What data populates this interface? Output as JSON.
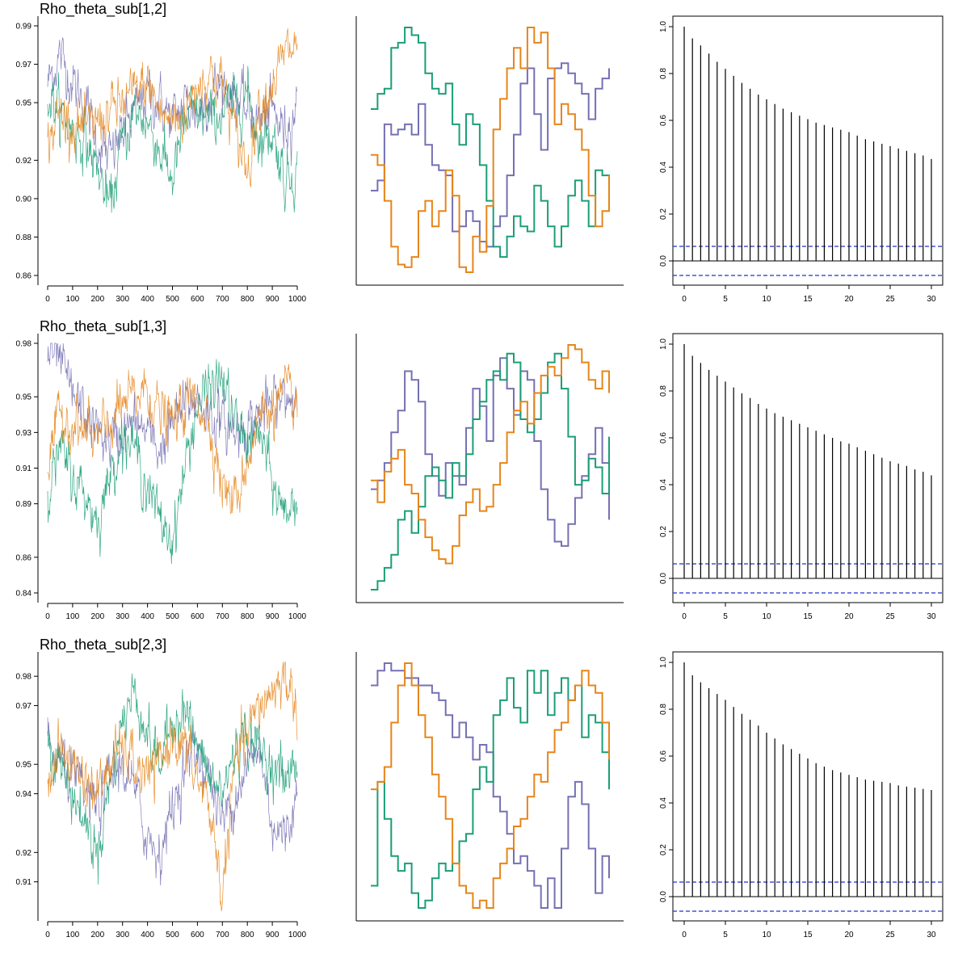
{
  "figure": {
    "colors": {
      "chain1": "#7570B3",
      "chain2": "#1B9E77",
      "chain3": "#E6851A",
      "acf": "#000000",
      "ci": "#2233CC",
      "axis": "#000000"
    },
    "ci": 0.062
  },
  "chart_data": [
    {
      "type": "line",
      "panel": "trace",
      "title": "Rho_theta_sub[1,2]",
      "xlim": [
        0,
        1000
      ],
      "xticks": [
        0,
        100,
        200,
        300,
        400,
        500,
        600,
        700,
        800,
        900,
        1000
      ],
      "ylim": [
        0.86,
        0.99
      ],
      "yticks": [
        "0.86",
        "0.88",
        "0.90",
        "0.92",
        "0.95",
        "0.97",
        "0.99"
      ],
      "series": [
        {
          "x": [
            0,
            50,
            100,
            150,
            200,
            250,
            300,
            350,
            400,
            450,
            500,
            550,
            600,
            650,
            700,
            750,
            800,
            850,
            900,
            950,
            1000
          ],
          "values": [
            0.96,
            0.975,
            0.96,
            0.95,
            0.93,
            0.92,
            0.935,
            0.945,
            0.955,
            0.95,
            0.94,
            0.95,
            0.945,
            0.955,
            0.96,
            0.955,
            0.945,
            0.94,
            0.945,
            0.935,
            0.95
          ]
        },
        {
          "x": [
            0,
            50,
            100,
            150,
            200,
            250,
            300,
            350,
            400,
            450,
            500,
            550,
            600,
            650,
            700,
            750,
            800,
            850,
            900,
            950,
            1000
          ],
          "values": [
            0.955,
            0.945,
            0.935,
            0.93,
            0.915,
            0.895,
            0.93,
            0.945,
            0.94,
            0.925,
            0.91,
            0.94,
            0.945,
            0.94,
            0.945,
            0.95,
            0.955,
            0.93,
            0.935,
            0.91,
            0.915
          ]
        },
        {
          "x": [
            0,
            50,
            100,
            150,
            200,
            250,
            300,
            350,
            400,
            450,
            500,
            550,
            600,
            650,
            700,
            750,
            800,
            850,
            900,
            950,
            1000
          ],
          "values": [
            0.93,
            0.945,
            0.94,
            0.935,
            0.94,
            0.945,
            0.95,
            0.955,
            0.96,
            0.945,
            0.94,
            0.945,
            0.96,
            0.965,
            0.96,
            0.935,
            0.915,
            0.95,
            0.96,
            0.975,
            0.98
          ]
        }
      ]
    },
    {
      "type": "line",
      "panel": "zoom",
      "series": [
        {
          "values": [
            0.914,
            0.918,
            0.94,
            0.936,
            0.938,
            0.94,
            0.936,
            0.948,
            0.932,
            0.924,
            0.922,
            0.92,
            0.898,
            0.9,
            0.906,
            0.902,
            0.894,
            0.892,
            0.9,
            0.904,
            0.92,
            0.936,
            0.956,
            0.962,
            0.944,
            0.93,
            0.958,
            0.962,
            0.964,
            0.96,
            0.956,
            0.952,
            0.942,
            0.954,
            0.958,
            0.962
          ]
        },
        {
          "values": [
            0.946,
            0.952,
            0.954,
            0.97,
            0.972,
            0.978,
            0.975,
            0.972,
            0.96,
            0.954,
            0.952,
            0.956,
            0.94,
            0.932,
            0.944,
            0.94,
            0.924,
            0.91,
            0.892,
            0.888,
            0.896,
            0.904,
            0.9,
            0.898,
            0.916,
            0.91,
            0.9,
            0.892,
            0.9,
            0.912,
            0.918,
            0.91,
            0.9,
            0.922,
            0.92,
            0.91
          ]
        },
        {
          "values": [
            0.928,
            0.924,
            0.91,
            0.892,
            0.885,
            0.884,
            0.888,
            0.906,
            0.91,
            0.9,
            0.906,
            0.922,
            0.912,
            0.884,
            0.882,
            0.896,
            0.89,
            0.908,
            0.938,
            0.95,
            0.962,
            0.97,
            0.962,
            0.978,
            0.972,
            0.976,
            0.962,
            0.94,
            0.948,
            0.944,
            0.938,
            0.93,
            0.912,
            0.9,
            0.906,
            0.92
          ]
        }
      ]
    },
    {
      "type": "bar",
      "panel": "acf",
      "xlim": [
        0,
        30
      ],
      "xticks": [
        0,
        5,
        10,
        15,
        20,
        25,
        30
      ],
      "ylim": [
        -0.1,
        1.0
      ],
      "yticks": [
        "0.0",
        "0.2",
        "0.4",
        "0.6",
        "0.8",
        "1.0"
      ],
      "values": [
        1.0,
        0.95,
        0.92,
        0.885,
        0.85,
        0.82,
        0.79,
        0.76,
        0.735,
        0.71,
        0.69,
        0.67,
        0.65,
        0.635,
        0.62,
        0.605,
        0.59,
        0.58,
        0.57,
        0.56,
        0.55,
        0.535,
        0.52,
        0.51,
        0.5,
        0.49,
        0.48,
        0.47,
        0.46,
        0.45,
        0.435
      ]
    },
    {
      "type": "line",
      "panel": "trace",
      "title": "Rho_theta_sub[1,3]",
      "xlim": [
        0,
        1000
      ],
      "xticks": [
        0,
        100,
        200,
        300,
        400,
        500,
        600,
        700,
        800,
        900,
        1000
      ],
      "ylim": [
        0.84,
        0.98
      ],
      "yticks": [
        "0.84",
        "0.86",
        "0.89",
        "0.91",
        "0.93",
        "0.95",
        "0.98"
      ],
      "series": [
        {
          "x": [
            0,
            50,
            100,
            150,
            200,
            250,
            300,
            350,
            400,
            450,
            500,
            550,
            600,
            650,
            700,
            750,
            800,
            850,
            900,
            950,
            1000
          ],
          "values": [
            0.975,
            0.97,
            0.95,
            0.94,
            0.93,
            0.925,
            0.93,
            0.935,
            0.93,
            0.92,
            0.935,
            0.945,
            0.95,
            0.94,
            0.935,
            0.93,
            0.935,
            0.94,
            0.945,
            0.95,
            0.95
          ]
        },
        {
          "x": [
            0,
            50,
            100,
            150,
            200,
            250,
            300,
            350,
            400,
            450,
            500,
            550,
            600,
            650,
            700,
            750,
            800,
            850,
            900,
            950,
            1000
          ],
          "values": [
            0.9,
            0.92,
            0.905,
            0.895,
            0.88,
            0.905,
            0.93,
            0.92,
            0.9,
            0.88,
            0.87,
            0.91,
            0.945,
            0.955,
            0.96,
            0.935,
            0.925,
            0.93,
            0.9,
            0.885,
            0.895
          ]
        },
        {
          "x": [
            0,
            50,
            100,
            150,
            200,
            250,
            300,
            350,
            400,
            450,
            500,
            550,
            600,
            650,
            700,
            750,
            800,
            850,
            900,
            950,
            1000
          ],
          "values": [
            0.91,
            0.94,
            0.935,
            0.93,
            0.925,
            0.935,
            0.945,
            0.95,
            0.955,
            0.94,
            0.935,
            0.945,
            0.95,
            0.935,
            0.9,
            0.89,
            0.915,
            0.94,
            0.945,
            0.95,
            0.945
          ]
        }
      ]
    },
    {
      "type": "line",
      "panel": "zoom",
      "series": [
        {
          "values": [
            0.908,
            0.912,
            0.92,
            0.934,
            0.944,
            0.962,
            0.958,
            0.948,
            0.924,
            0.914,
            0.905,
            0.92,
            0.914,
            0.91,
            0.936,
            0.954,
            0.946,
            0.93,
            0.96,
            0.968,
            0.954,
            0.942,
            0.962,
            0.958,
            0.93,
            0.908,
            0.894,
            0.884,
            0.882,
            0.892,
            0.904,
            0.914,
            0.924,
            0.936,
            0.92,
            0.894
          ]
        },
        {
          "values": [
            0.862,
            0.866,
            0.872,
            0.878,
            0.894,
            0.898,
            0.888,
            0.9,
            0.914,
            0.918,
            0.912,
            0.904,
            0.92,
            0.914,
            0.924,
            0.94,
            0.948,
            0.958,
            0.962,
            0.958,
            0.97,
            0.966,
            0.94,
            0.934,
            0.94,
            0.952,
            0.966,
            0.97,
            0.954,
            0.932,
            0.91,
            0.912,
            0.922,
            0.918,
            0.906,
            0.932
          ]
        },
        {
          "values": [
            0.912,
            0.902,
            0.916,
            0.922,
            0.926,
            0.91,
            0.906,
            0.894,
            0.886,
            0.88,
            0.876,
            0.874,
            0.882,
            0.896,
            0.902,
            0.908,
            0.898,
            0.9,
            0.91,
            0.92,
            0.934,
            0.944,
            0.948,
            0.938,
            0.952,
            0.96,
            0.964,
            0.96,
            0.968,
            0.974,
            0.972,
            0.966,
            0.958,
            0.954,
            0.962,
            0.952
          ]
        }
      ]
    },
    {
      "type": "bar",
      "panel": "acf",
      "xlim": [
        0,
        30
      ],
      "xticks": [
        0,
        5,
        10,
        15,
        20,
        25,
        30
      ],
      "ylim": [
        -0.1,
        1.0
      ],
      "yticks": [
        "0.0",
        "0.2",
        "0.4",
        "0.6",
        "0.8",
        "1.0"
      ],
      "values": [
        1.0,
        0.95,
        0.92,
        0.89,
        0.865,
        0.84,
        0.815,
        0.79,
        0.77,
        0.745,
        0.725,
        0.705,
        0.69,
        0.675,
        0.66,
        0.645,
        0.63,
        0.615,
        0.6,
        0.585,
        0.575,
        0.56,
        0.545,
        0.53,
        0.515,
        0.5,
        0.49,
        0.48,
        0.465,
        0.455,
        0.44
      ]
    },
    {
      "type": "line",
      "panel": "trace",
      "title": "Rho_theta_sub[2,3]",
      "xlim": [
        0,
        1000
      ],
      "xticks": [
        0,
        100,
        200,
        300,
        400,
        500,
        600,
        700,
        800,
        900,
        1000
      ],
      "ylim": [
        0.9,
        0.985
      ],
      "yticks": [
        "0.91",
        "0.92",
        "0.94",
        "0.95",
        "0.97",
        "0.98"
      ],
      "series": [
        {
          "x": [
            0,
            50,
            100,
            150,
            200,
            250,
            300,
            350,
            400,
            450,
            500,
            550,
            600,
            650,
            700,
            750,
            800,
            850,
            900,
            950,
            1000
          ],
          "values": [
            0.955,
            0.95,
            0.945,
            0.94,
            0.935,
            0.945,
            0.95,
            0.94,
            0.925,
            0.92,
            0.935,
            0.95,
            0.955,
            0.945,
            0.93,
            0.94,
            0.95,
            0.955,
            0.93,
            0.925,
            0.94
          ]
        },
        {
          "x": [
            0,
            50,
            100,
            150,
            200,
            250,
            300,
            350,
            400,
            450,
            500,
            550,
            600,
            650,
            700,
            750,
            800,
            850,
            900,
            950,
            1000
          ],
          "values": [
            0.96,
            0.95,
            0.94,
            0.93,
            0.92,
            0.945,
            0.965,
            0.975,
            0.96,
            0.95,
            0.965,
            0.97,
            0.955,
            0.945,
            0.94,
            0.955,
            0.96,
            0.955,
            0.95,
            0.945,
            0.95
          ]
        },
        {
          "x": [
            0,
            50,
            100,
            150,
            200,
            250,
            300,
            350,
            400,
            450,
            500,
            550,
            600,
            650,
            700,
            750,
            800,
            850,
            900,
            950,
            1000
          ],
          "values": [
            0.945,
            0.955,
            0.95,
            0.945,
            0.94,
            0.95,
            0.955,
            0.95,
            0.945,
            0.95,
            0.96,
            0.955,
            0.945,
            0.935,
            0.905,
            0.95,
            0.96,
            0.97,
            0.975,
            0.98,
            0.97
          ]
        }
      ]
    },
    {
      "type": "line",
      "panel": "zoom",
      "series": [
        {
          "values": [
            0.966,
            0.97,
            0.972,
            0.97,
            0.97,
            0.968,
            0.968,
            0.966,
            0.966,
            0.964,
            0.962,
            0.958,
            0.952,
            0.956,
            0.952,
            0.946,
            0.95,
            0.948,
            0.936,
            0.932,
            0.926,
            0.918,
            0.92,
            0.916,
            0.912,
            0.906,
            0.914,
            0.906,
            0.922,
            0.936,
            0.94,
            0.934,
            0.922,
            0.91,
            0.92,
            0.914
          ]
        },
        {
          "values": [
            0.912,
            0.94,
            0.93,
            0.92,
            0.916,
            0.918,
            0.91,
            0.906,
            0.908,
            0.914,
            0.918,
            0.916,
            0.918,
            0.924,
            0.926,
            0.938,
            0.944,
            0.94,
            0.958,
            0.962,
            0.968,
            0.96,
            0.956,
            0.97,
            0.964,
            0.97,
            0.958,
            0.964,
            0.968,
            0.962,
            0.966,
            0.952,
            0.958,
            0.956,
            0.948,
            0.938
          ]
        },
        {
          "values": [
            0.938,
            0.94,
            0.944,
            0.956,
            0.966,
            0.972,
            0.966,
            0.958,
            0.952,
            0.942,
            0.936,
            0.93,
            0.918,
            0.912,
            0.91,
            0.906,
            0.908,
            0.906,
            0.914,
            0.918,
            0.922,
            0.928,
            0.93,
            0.936,
            0.942,
            0.94,
            0.948,
            0.954,
            0.956,
            0.962,
            0.966,
            0.97,
            0.966,
            0.964,
            0.956,
            0.946
          ]
        }
      ]
    },
    {
      "type": "bar",
      "panel": "acf",
      "xlim": [
        0,
        30
      ],
      "xticks": [
        0,
        5,
        10,
        15,
        20,
        25,
        30
      ],
      "ylim": [
        -0.1,
        1.0
      ],
      "yticks": [
        "0.0",
        "0.2",
        "0.4",
        "0.6",
        "0.8",
        "1.0"
      ],
      "values": [
        1.0,
        0.945,
        0.915,
        0.89,
        0.865,
        0.84,
        0.81,
        0.78,
        0.755,
        0.73,
        0.7,
        0.675,
        0.65,
        0.63,
        0.61,
        0.59,
        0.57,
        0.555,
        0.54,
        0.53,
        0.52,
        0.51,
        0.5,
        0.495,
        0.49,
        0.485,
        0.475,
        0.47,
        0.465,
        0.46,
        0.455
      ]
    }
  ]
}
